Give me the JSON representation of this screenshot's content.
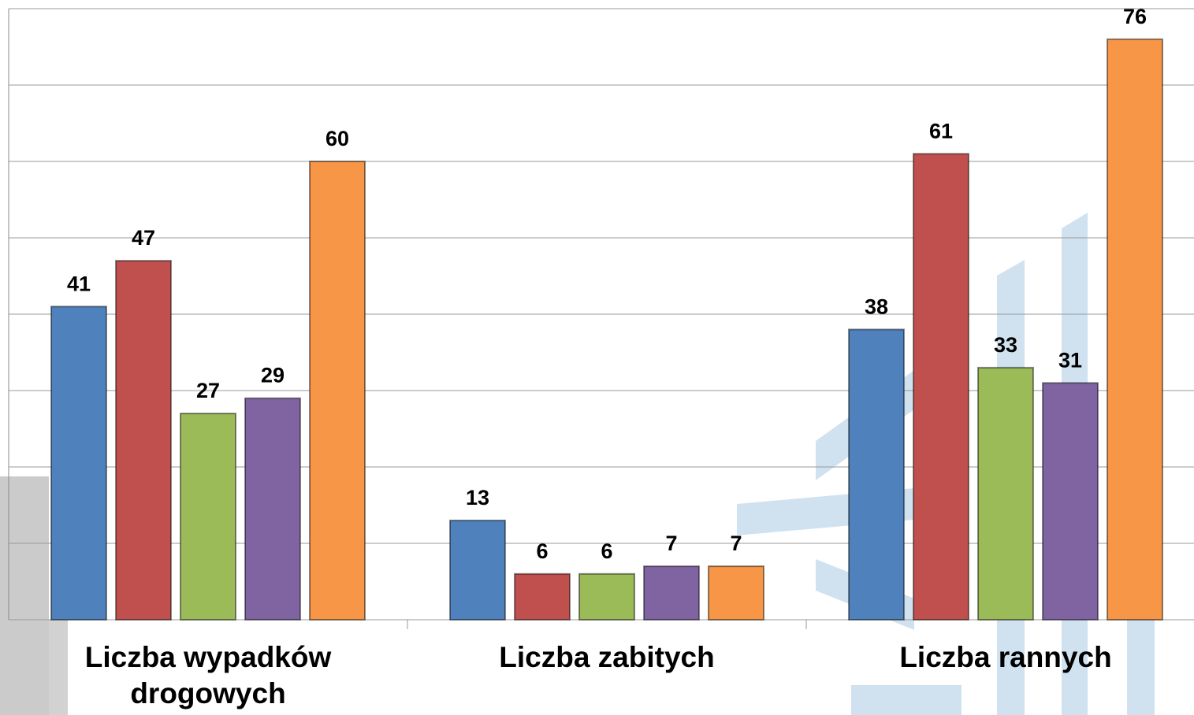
{
  "chart_data": {
    "type": "bar",
    "categories": [
      "Liczba wypadków drogowych",
      "Liczba zabitych",
      "Liczba rannych"
    ],
    "series": [
      {
        "color": "#4f81bd",
        "values": [
          41,
          13,
          38
        ]
      },
      {
        "color": "#c0504d",
        "values": [
          47,
          6,
          61
        ]
      },
      {
        "color": "#9bbb59",
        "values": [
          27,
          6,
          33
        ]
      },
      {
        "color": "#8064a2",
        "values": [
          29,
          7,
          31
        ]
      },
      {
        "color": "#f79646",
        "values": [
          60,
          7,
          76
        ]
      }
    ],
    "ylim": [
      0,
      80
    ],
    "yticks": [
      0,
      10,
      20,
      30,
      40,
      50,
      60,
      70,
      80
    ],
    "grid": true
  }
}
